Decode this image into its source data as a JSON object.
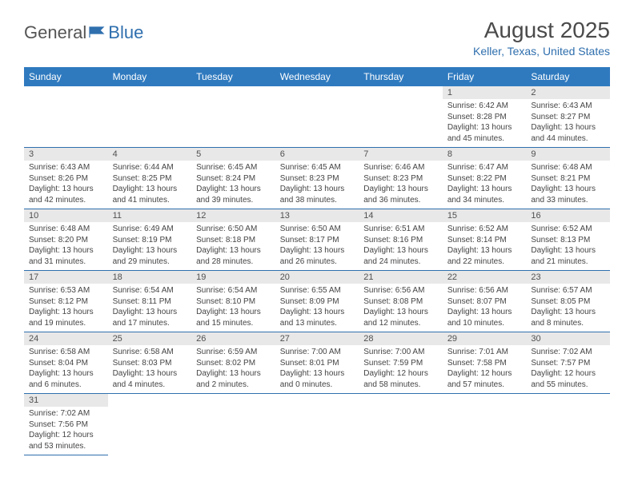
{
  "logo": {
    "general": "General",
    "blue": "Blue"
  },
  "title": "August 2025",
  "location": "Keller, Texas, United States",
  "day_headers": [
    "Sunday",
    "Monday",
    "Tuesday",
    "Wednesday",
    "Thursday",
    "Friday",
    "Saturday"
  ],
  "colors": {
    "header_bg": "#2f7abf",
    "header_text": "#ffffff",
    "daynum_bg": "#e8e8e8",
    "border": "#2f6fae",
    "title_color": "#4a4a4a",
    "location_color": "#2f6fae",
    "text_color": "#444444"
  },
  "weeks": [
    [
      null,
      null,
      null,
      null,
      null,
      {
        "n": "1",
        "sunrise": "Sunrise: 6:42 AM",
        "sunset": "Sunset: 8:28 PM",
        "daylight": "Daylight: 13 hours and 45 minutes."
      },
      {
        "n": "2",
        "sunrise": "Sunrise: 6:43 AM",
        "sunset": "Sunset: 8:27 PM",
        "daylight": "Daylight: 13 hours and 44 minutes."
      }
    ],
    [
      {
        "n": "3",
        "sunrise": "Sunrise: 6:43 AM",
        "sunset": "Sunset: 8:26 PM",
        "daylight": "Daylight: 13 hours and 42 minutes."
      },
      {
        "n": "4",
        "sunrise": "Sunrise: 6:44 AM",
        "sunset": "Sunset: 8:25 PM",
        "daylight": "Daylight: 13 hours and 41 minutes."
      },
      {
        "n": "5",
        "sunrise": "Sunrise: 6:45 AM",
        "sunset": "Sunset: 8:24 PM",
        "daylight": "Daylight: 13 hours and 39 minutes."
      },
      {
        "n": "6",
        "sunrise": "Sunrise: 6:45 AM",
        "sunset": "Sunset: 8:23 PM",
        "daylight": "Daylight: 13 hours and 38 minutes."
      },
      {
        "n": "7",
        "sunrise": "Sunrise: 6:46 AM",
        "sunset": "Sunset: 8:23 PM",
        "daylight": "Daylight: 13 hours and 36 minutes."
      },
      {
        "n": "8",
        "sunrise": "Sunrise: 6:47 AM",
        "sunset": "Sunset: 8:22 PM",
        "daylight": "Daylight: 13 hours and 34 minutes."
      },
      {
        "n": "9",
        "sunrise": "Sunrise: 6:48 AM",
        "sunset": "Sunset: 8:21 PM",
        "daylight": "Daylight: 13 hours and 33 minutes."
      }
    ],
    [
      {
        "n": "10",
        "sunrise": "Sunrise: 6:48 AM",
        "sunset": "Sunset: 8:20 PM",
        "daylight": "Daylight: 13 hours and 31 minutes."
      },
      {
        "n": "11",
        "sunrise": "Sunrise: 6:49 AM",
        "sunset": "Sunset: 8:19 PM",
        "daylight": "Daylight: 13 hours and 29 minutes."
      },
      {
        "n": "12",
        "sunrise": "Sunrise: 6:50 AM",
        "sunset": "Sunset: 8:18 PM",
        "daylight": "Daylight: 13 hours and 28 minutes."
      },
      {
        "n": "13",
        "sunrise": "Sunrise: 6:50 AM",
        "sunset": "Sunset: 8:17 PM",
        "daylight": "Daylight: 13 hours and 26 minutes."
      },
      {
        "n": "14",
        "sunrise": "Sunrise: 6:51 AM",
        "sunset": "Sunset: 8:16 PM",
        "daylight": "Daylight: 13 hours and 24 minutes."
      },
      {
        "n": "15",
        "sunrise": "Sunrise: 6:52 AM",
        "sunset": "Sunset: 8:14 PM",
        "daylight": "Daylight: 13 hours and 22 minutes."
      },
      {
        "n": "16",
        "sunrise": "Sunrise: 6:52 AM",
        "sunset": "Sunset: 8:13 PM",
        "daylight": "Daylight: 13 hours and 21 minutes."
      }
    ],
    [
      {
        "n": "17",
        "sunrise": "Sunrise: 6:53 AM",
        "sunset": "Sunset: 8:12 PM",
        "daylight": "Daylight: 13 hours and 19 minutes."
      },
      {
        "n": "18",
        "sunrise": "Sunrise: 6:54 AM",
        "sunset": "Sunset: 8:11 PM",
        "daylight": "Daylight: 13 hours and 17 minutes."
      },
      {
        "n": "19",
        "sunrise": "Sunrise: 6:54 AM",
        "sunset": "Sunset: 8:10 PM",
        "daylight": "Daylight: 13 hours and 15 minutes."
      },
      {
        "n": "20",
        "sunrise": "Sunrise: 6:55 AM",
        "sunset": "Sunset: 8:09 PM",
        "daylight": "Daylight: 13 hours and 13 minutes."
      },
      {
        "n": "21",
        "sunrise": "Sunrise: 6:56 AM",
        "sunset": "Sunset: 8:08 PM",
        "daylight": "Daylight: 13 hours and 12 minutes."
      },
      {
        "n": "22",
        "sunrise": "Sunrise: 6:56 AM",
        "sunset": "Sunset: 8:07 PM",
        "daylight": "Daylight: 13 hours and 10 minutes."
      },
      {
        "n": "23",
        "sunrise": "Sunrise: 6:57 AM",
        "sunset": "Sunset: 8:05 PM",
        "daylight": "Daylight: 13 hours and 8 minutes."
      }
    ],
    [
      {
        "n": "24",
        "sunrise": "Sunrise: 6:58 AM",
        "sunset": "Sunset: 8:04 PM",
        "daylight": "Daylight: 13 hours and 6 minutes."
      },
      {
        "n": "25",
        "sunrise": "Sunrise: 6:58 AM",
        "sunset": "Sunset: 8:03 PM",
        "daylight": "Daylight: 13 hours and 4 minutes."
      },
      {
        "n": "26",
        "sunrise": "Sunrise: 6:59 AM",
        "sunset": "Sunset: 8:02 PM",
        "daylight": "Daylight: 13 hours and 2 minutes."
      },
      {
        "n": "27",
        "sunrise": "Sunrise: 7:00 AM",
        "sunset": "Sunset: 8:01 PM",
        "daylight": "Daylight: 13 hours and 0 minutes."
      },
      {
        "n": "28",
        "sunrise": "Sunrise: 7:00 AM",
        "sunset": "Sunset: 7:59 PM",
        "daylight": "Daylight: 12 hours and 58 minutes."
      },
      {
        "n": "29",
        "sunrise": "Sunrise: 7:01 AM",
        "sunset": "Sunset: 7:58 PM",
        "daylight": "Daylight: 12 hours and 57 minutes."
      },
      {
        "n": "30",
        "sunrise": "Sunrise: 7:02 AM",
        "sunset": "Sunset: 7:57 PM",
        "daylight": "Daylight: 12 hours and 55 minutes."
      }
    ],
    [
      {
        "n": "31",
        "sunrise": "Sunrise: 7:02 AM",
        "sunset": "Sunset: 7:56 PM",
        "daylight": "Daylight: 12 hours and 53 minutes."
      },
      null,
      null,
      null,
      null,
      null,
      null
    ]
  ]
}
